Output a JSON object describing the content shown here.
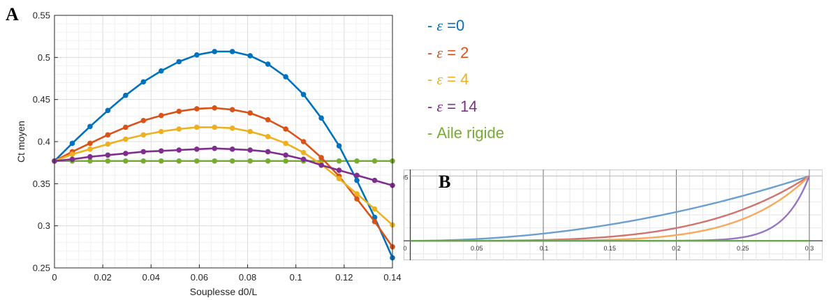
{
  "panel_labels": {
    "a": "A",
    "b": "B"
  },
  "legend": {
    "items": [
      {
        "dash": "-",
        "symbol": "ε",
        "text": " =0",
        "color": "#0072BD"
      },
      {
        "dash": "-",
        "symbol": "ε",
        "text": " = 2",
        "color": "#D95319"
      },
      {
        "dash": "-",
        "symbol": "ε",
        "text": " = 4",
        "color": "#EDB120"
      },
      {
        "dash": "-",
        "symbol": "ε",
        "text": " = 14",
        "color": "#7E2F8E"
      },
      {
        "dash": "-",
        "symbol": "",
        "text": "Aile rigide",
        "color": "#77AC30"
      }
    ]
  },
  "chart_data": [
    {
      "panel": "A",
      "type": "line",
      "xlabel": "Souplesse d0/L",
      "ylabel": "Ct moyen",
      "xlim": [
        0,
        0.14
      ],
      "ylim": [
        0.25,
        0.55
      ],
      "xticks": [
        0,
        0.02,
        0.04,
        0.06,
        0.08,
        0.1,
        0.12,
        0.14
      ],
      "yticks": [
        0.25,
        0.3,
        0.35,
        0.4,
        0.45,
        0.5,
        0.55
      ],
      "xtick_labels": [
        "0",
        "0.02",
        "0.04",
        "0.06",
        "0.08",
        "0.1",
        "0.12",
        "0.14"
      ],
      "ytick_labels": [
        "0.25",
        "0.3",
        "0.35",
        "0.4",
        "0.45",
        "0.5",
        "0.55"
      ],
      "grid": true,
      "markers": true,
      "x": [
        0,
        0.00737,
        0.01474,
        0.02211,
        0.02947,
        0.03684,
        0.04421,
        0.05158,
        0.05895,
        0.06632,
        0.07368,
        0.08105,
        0.08842,
        0.09579,
        0.10316,
        0.11053,
        0.11789,
        0.12526,
        0.13263,
        0.14
      ],
      "series": [
        {
          "color": "#0072BD",
          "values": [
            0.377,
            0.398,
            0.418,
            0.437,
            0.455,
            0.471,
            0.484,
            0.495,
            0.503,
            0.507,
            0.507,
            0.502,
            0.492,
            0.477,
            0.456,
            0.428,
            0.395,
            0.354,
            0.31,
            0.262
          ]
        },
        {
          "color": "#D95319",
          "values": [
            0.377,
            0.388,
            0.398,
            0.408,
            0.417,
            0.425,
            0.431,
            0.436,
            0.439,
            0.44,
            0.438,
            0.434,
            0.426,
            0.415,
            0.4,
            0.381,
            0.359,
            0.332,
            0.305,
            0.275
          ]
        },
        {
          "color": "#EDB120",
          "values": [
            0.377,
            0.385,
            0.391,
            0.397,
            0.403,
            0.408,
            0.412,
            0.415,
            0.417,
            0.417,
            0.416,
            0.412,
            0.406,
            0.398,
            0.387,
            0.373,
            0.356,
            0.338,
            0.32,
            0.301
          ]
        },
        {
          "color": "#7E2F8E",
          "values": [
            0.377,
            0.379,
            0.382,
            0.384,
            0.386,
            0.388,
            0.389,
            0.39,
            0.391,
            0.392,
            0.391,
            0.39,
            0.388,
            0.384,
            0.379,
            0.372,
            0.366,
            0.36,
            0.354,
            0.348
          ]
        },
        {
          "color": "#77AC30",
          "values": [
            0.377,
            0.377,
            0.377,
            0.377,
            0.377,
            0.377,
            0.377,
            0.377,
            0.377,
            0.377,
            0.377,
            0.377,
            0.377,
            0.377,
            0.377,
            0.377,
            0.377,
            0.377,
            0.377,
            0.377
          ]
        }
      ]
    },
    {
      "panel": "B",
      "type": "line",
      "xlim": [
        -0.005,
        0.31
      ],
      "ylim": [
        -0.0015,
        0.0055
      ],
      "xticks": [
        0,
        0.05,
        0.1,
        0.15,
        0.2,
        0.25,
        0.3
      ],
      "xtick_labels": [
        "0",
        "0.05",
        "0.1",
        "0.15",
        "0.2",
        "0.25",
        "0.3"
      ],
      "yticks": [
        0.05
      ],
      "ytick_labels": [
        "0.05"
      ],
      "grid": true,
      "markers": false,
      "curves": [
        {
          "color": "#6A9FD0",
          "function": "0.05*(x/0.3)^2"
        },
        {
          "color": "#CF7470",
          "function": "0.05*(x/0.3)^4"
        },
        {
          "color": "#F7A85C",
          "function": "0.05*(x/0.3)^6"
        },
        {
          "color": "#9676C4",
          "function": "0.05*(x/0.3)^16"
        },
        {
          "color": "#6BA352",
          "function": "0"
        }
      ]
    }
  ]
}
